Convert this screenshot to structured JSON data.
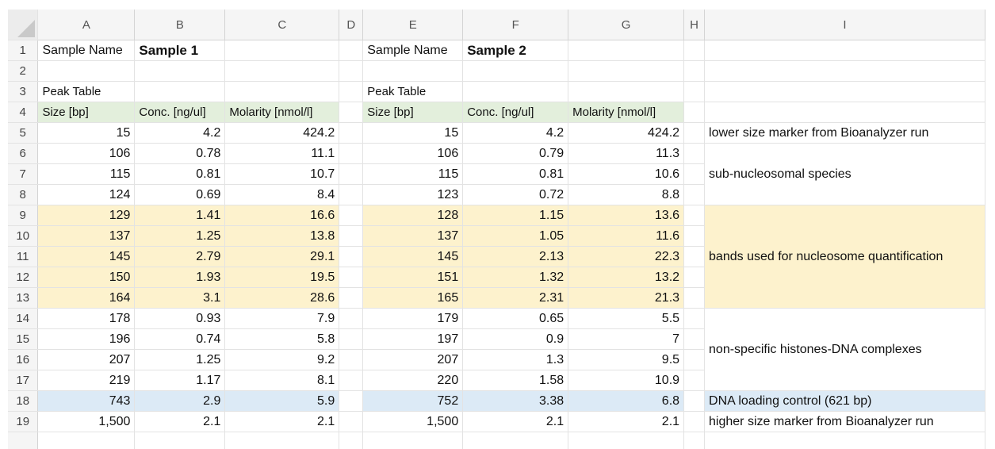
{
  "columns": [
    "A",
    "B",
    "C",
    "D",
    "E",
    "F",
    "G",
    "H",
    "I"
  ],
  "row_numbers": [
    "1",
    "2",
    "3",
    "4",
    "5",
    "6",
    "7",
    "8",
    "9",
    "10",
    "11",
    "12",
    "13",
    "14",
    "15",
    "16",
    "17",
    "18",
    "19"
  ],
  "samples": [
    {
      "name_label": "Sample Name",
      "name_value": "Sample 1",
      "table_title": "Peak Table",
      "headers": [
        "Size [bp]",
        "Conc. [ng/ul]",
        "Molarity [nmol/l]"
      ],
      "rows": [
        [
          "15",
          "4.2",
          "424.2"
        ],
        [
          "106",
          "0.78",
          "11.1"
        ],
        [
          "115",
          "0.81",
          "10.7"
        ],
        [
          "124",
          "0.69",
          "8.4"
        ],
        [
          "129",
          "1.41",
          "16.6"
        ],
        [
          "137",
          "1.25",
          "13.8"
        ],
        [
          "145",
          "2.79",
          "29.1"
        ],
        [
          "150",
          "1.93",
          "19.5"
        ],
        [
          "164",
          "3.1",
          "28.6"
        ],
        [
          "178",
          "0.93",
          "7.9"
        ],
        [
          "196",
          "0.74",
          "5.8"
        ],
        [
          "207",
          "1.25",
          "9.2"
        ],
        [
          "219",
          "1.17",
          "8.1"
        ],
        [
          "743",
          "2.9",
          "5.9"
        ],
        [
          "1,500",
          "2.1",
          "2.1"
        ]
      ]
    },
    {
      "name_label": "Sample Name",
      "name_value": "Sample 2",
      "table_title": "Peak Table",
      "headers": [
        "Size [bp]",
        "Conc. [ng/ul]",
        "Molarity [nmol/l]"
      ],
      "rows": [
        [
          "15",
          "4.2",
          "424.2"
        ],
        [
          "106",
          "0.79",
          "11.3"
        ],
        [
          "115",
          "0.81",
          "10.6"
        ],
        [
          "123",
          "0.72",
          "8.8"
        ],
        [
          "128",
          "1.15",
          "13.6"
        ],
        [
          "137",
          "1.05",
          "11.6"
        ],
        [
          "145",
          "2.13",
          "22.3"
        ],
        [
          "151",
          "1.32",
          "13.2"
        ],
        [
          "165",
          "2.31",
          "21.3"
        ],
        [
          "179",
          "0.65",
          "5.5"
        ],
        [
          "197",
          "0.9",
          "7"
        ],
        [
          "207",
          "1.3",
          "9.5"
        ],
        [
          "220",
          "1.58",
          "10.9"
        ],
        [
          "752",
          "3.38",
          "6.8"
        ],
        [
          "1,500",
          "2.1",
          "2.1"
        ]
      ]
    }
  ],
  "notes": {
    "lower_marker": "lower size marker from Bioanalyzer run",
    "sub_nucleosomal": "sub-nucleosomal species",
    "nucleosome_bands": "bands used for nucleosome quantification",
    "non_specific": "non-specific histones-DNA complexes",
    "loading_control": "DNA loading control (621 bp)",
    "higher_marker": "higher size marker from Bioanalyzer run"
  },
  "colors": {
    "header_green": "#e3efdc",
    "nucleosome_yellow": "#fdf2cd",
    "control_blue": "#dceaf6"
  }
}
